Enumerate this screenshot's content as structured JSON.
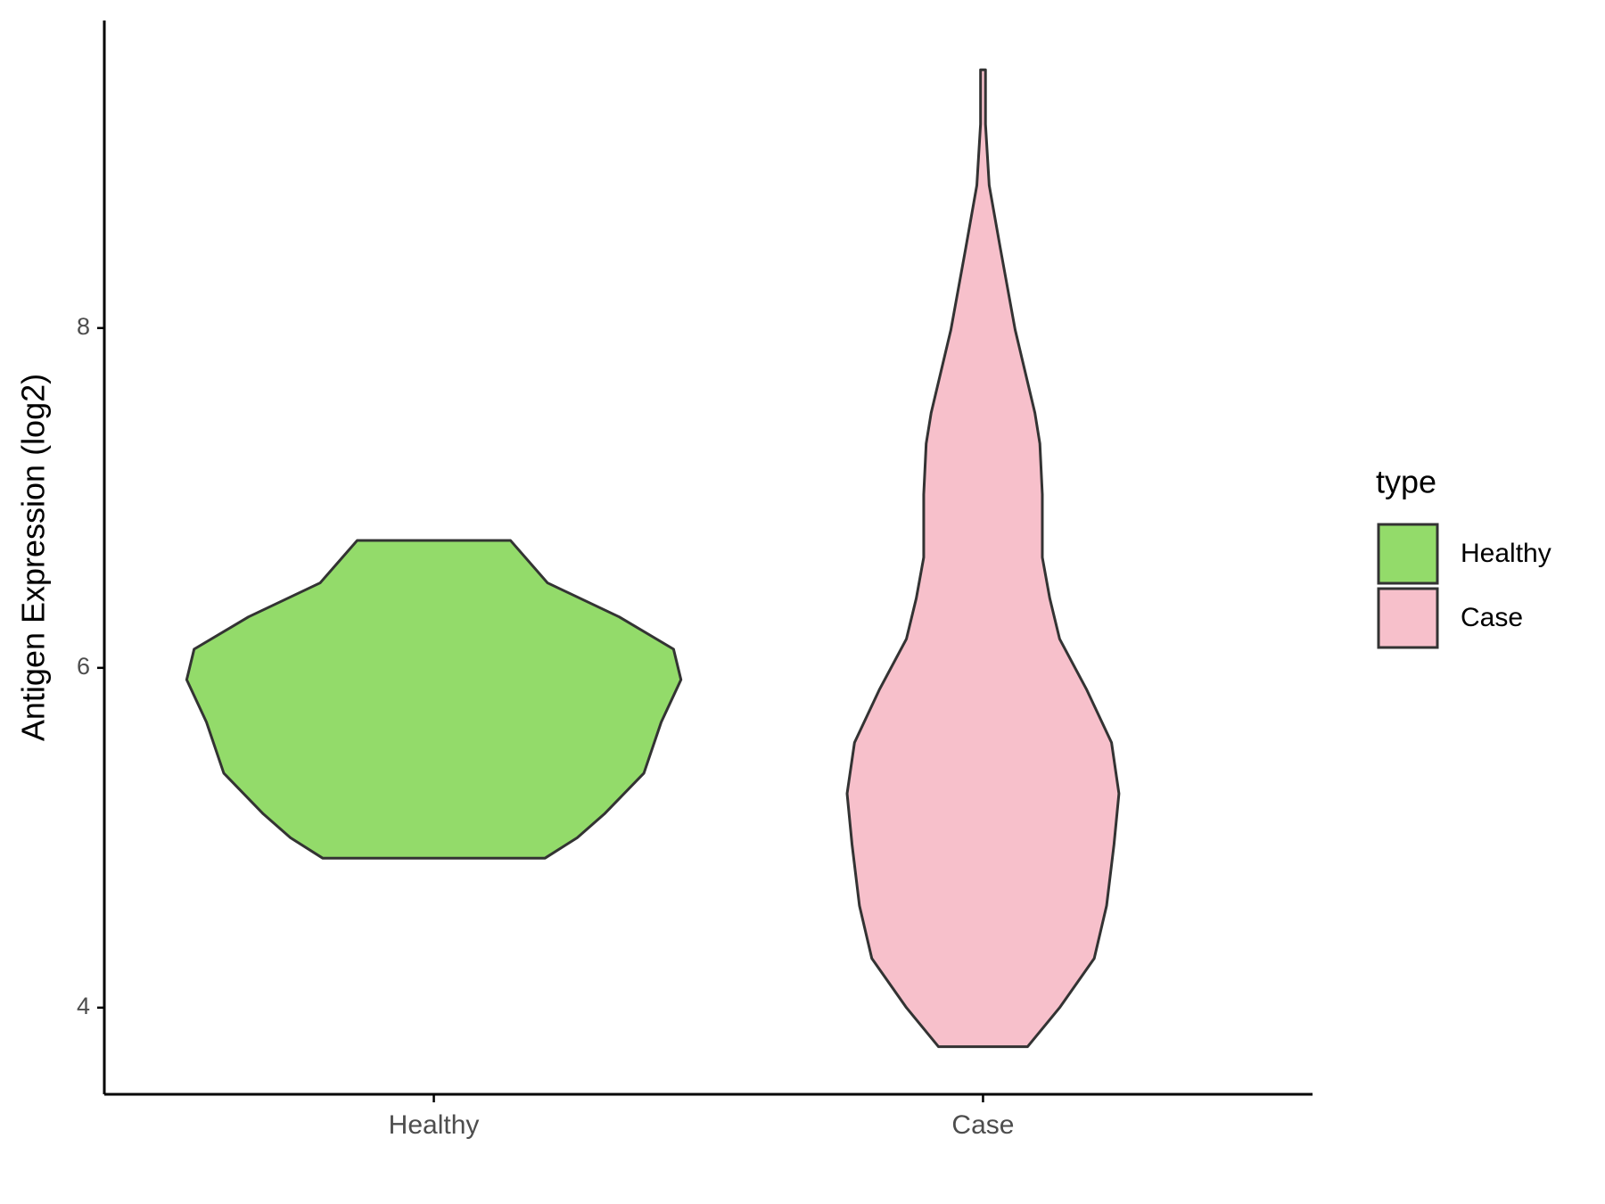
{
  "chart_data": {
    "type": "violin",
    "y_label": "Antigen Expression (log2)",
    "legend_title": "type",
    "categories": [
      "Healthy",
      "Case"
    ],
    "series": [
      {
        "name": "Healthy",
        "color": "#93db6a",
        "y": [
          4.88,
          5.0,
          5.14,
          5.38,
          5.68,
          5.93,
          6.11,
          6.3,
          6.5,
          6.75
        ],
        "density": [
          0.45,
          0.58,
          0.69,
          0.85,
          0.92,
          1.0,
          0.97,
          0.75,
          0.46,
          0.31
        ]
      },
      {
        "name": "Case",
        "color": "#f7c0cb",
        "y": [
          3.77,
          4.0,
          4.29,
          4.6,
          4.96,
          5.26,
          5.56,
          5.87,
          6.17,
          6.41,
          6.65,
          7.02,
          7.32,
          7.5,
          7.99,
          8.47,
          8.84,
          9.2,
          9.52
        ],
        "density": [
          0.18,
          0.31,
          0.45,
          0.5,
          0.53,
          0.55,
          0.52,
          0.42,
          0.31,
          0.27,
          0.24,
          0.24,
          0.23,
          0.21,
          0.13,
          0.07,
          0.025,
          0.01,
          0.01
        ]
      }
    ],
    "ylim": [
      3.49,
      9.81
    ],
    "yticks": [
      4,
      6,
      8
    ]
  }
}
